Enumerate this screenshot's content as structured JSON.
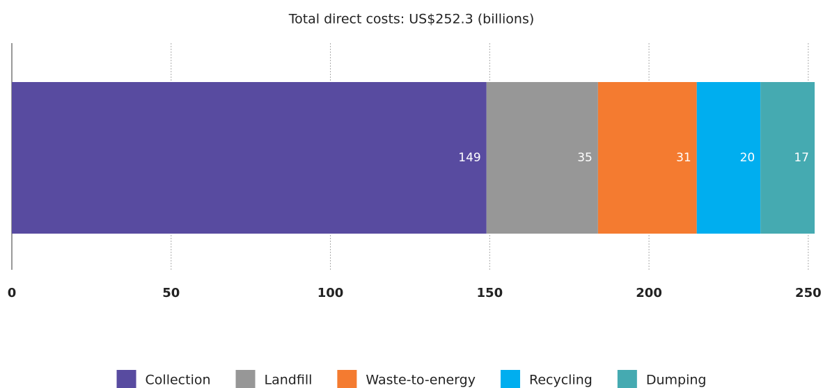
{
  "chart_data": {
    "type": "stacked-bar",
    "orientation": "horizontal",
    "title": "Total direct costs: US$252.3 (billions)",
    "series": [
      {
        "name": "Collection",
        "color": "#584ba0",
        "values": [
          149
        ]
      },
      {
        "name": "Landfill",
        "color": "#979797",
        "values": [
          35
        ]
      },
      {
        "name": "Waste-to-energy",
        "color": "#f47b30",
        "values": [
          31
        ]
      },
      {
        "name": "Recycling",
        "color": "#00aeef",
        "values": [
          20
        ]
      },
      {
        "name": "Dumping",
        "color": "#45aab1",
        "values": [
          17
        ]
      }
    ],
    "xlim": [
      0,
      252
    ],
    "xticks": [
      0,
      50,
      100,
      150,
      200,
      250
    ],
    "grid": true,
    "legend": "bottom"
  }
}
